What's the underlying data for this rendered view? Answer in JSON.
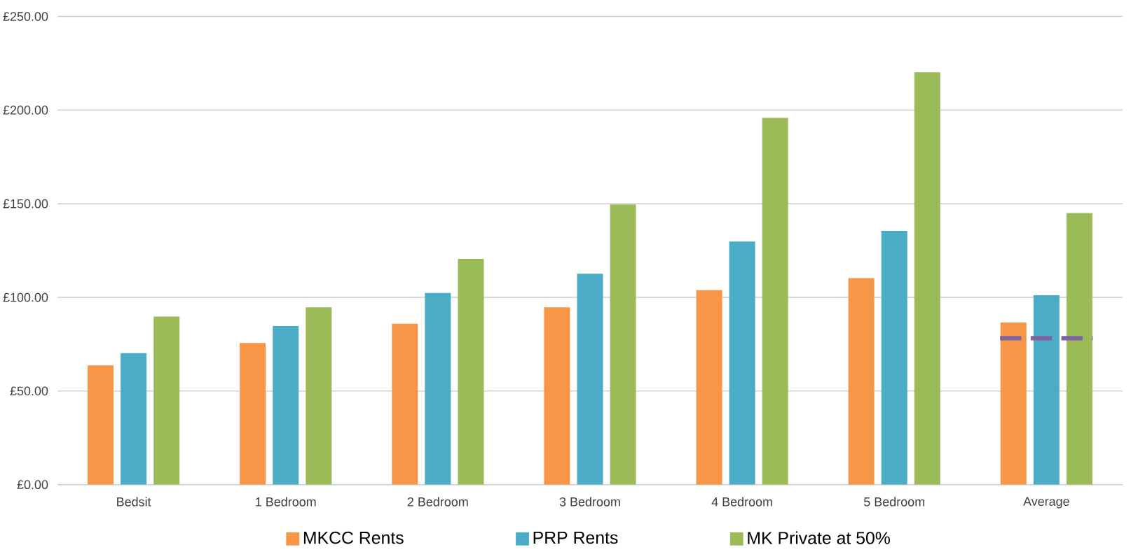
{
  "chart_data": {
    "type": "bar",
    "categories": [
      "Bedsit",
      "1 Bedroom",
      "2 Bedroom",
      "3 Bedroom",
      "4 Bedroom",
      "5 Bedroom",
      "Average"
    ],
    "series": [
      {
        "name": "MKCC Rents",
        "color": "#f79646",
        "values": [
          63.7,
          75.6,
          85.9,
          94.7,
          103.8,
          110.3,
          86.6
        ]
      },
      {
        "name": "PRP Rents",
        "color": "#4bacc6",
        "values": [
          70.2,
          84.7,
          102.3,
          112.6,
          129.8,
          135.5,
          101.1
        ]
      },
      {
        "name": "MK Private at 50%",
        "color": "#9bbb59",
        "values": [
          89.7,
          94.7,
          120.6,
          149.6,
          195.8,
          220.2,
          145.0
        ]
      }
    ],
    "ref_lines": [
      {
        "axis": "y",
        "value": 78.2,
        "color": "#8064a2",
        "line_style": "dashed"
      }
    ],
    "ylim": [
      0,
      250
    ],
    "yticks": [
      {
        "value": 0,
        "label": "£0.00"
      },
      {
        "value": 50,
        "label": "£50.00"
      },
      {
        "value": 100,
        "label": "£100.00"
      },
      {
        "value": 150,
        "label": "£150.00"
      },
      {
        "value": 200,
        "label": "£200.00"
      },
      {
        "value": 250,
        "label": "£250.00"
      }
    ],
    "grid": "y",
    "legend": "bottom"
  }
}
